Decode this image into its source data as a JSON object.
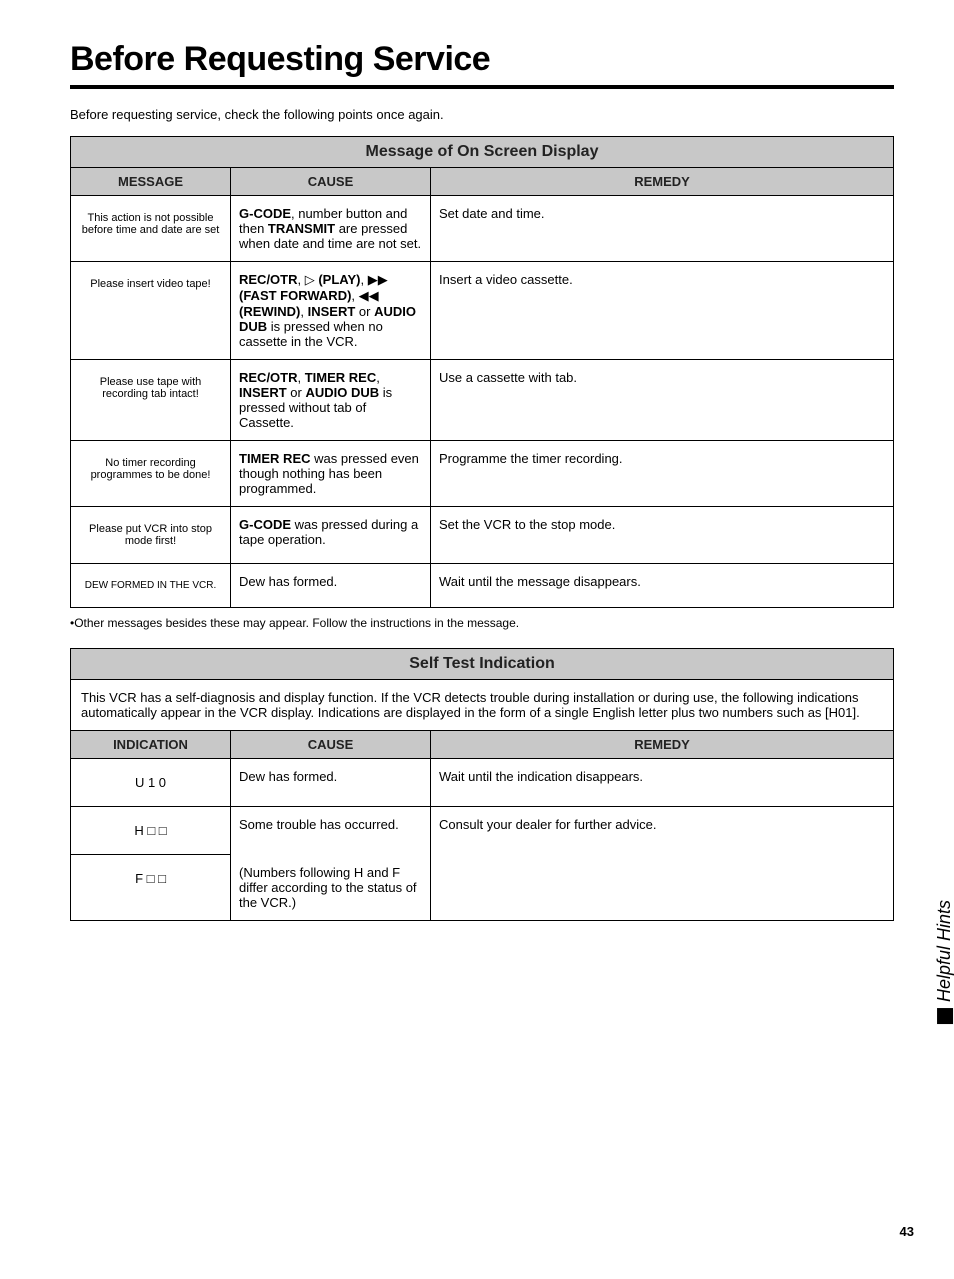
{
  "title": "Before Requesting Service",
  "intro": "Before requesting service, check the following points once again.",
  "table1": {
    "header": "Message of On Screen Display",
    "cols": {
      "c1": "MESSAGE",
      "c2": "CAUSE",
      "c3": "REMEDY"
    },
    "rows": [
      {
        "msg": "This action is not possible before time and date are set",
        "cause_bold1": "G-CODE",
        "cause_txt1": ", number button and then ",
        "cause_bold2": "TRANSMIT",
        "cause_txt2": " are pressed when date and time are not set.",
        "remedy": "Set date and time."
      },
      {
        "msg": "Please insert video tape!",
        "cause_bold1": "REC/OTR",
        "cause_sym1": ", ▷ ",
        "cause_bold2": "(PLAY)",
        "cause_sym2": ", ▶▶ ",
        "cause_bold3": "(FAST FORWARD)",
        "cause_sym3": ", ◀◀ ",
        "cause_bold4": "(REWIND)",
        "cause_txt1": ", ",
        "cause_bold5": "INSERT",
        "cause_txt2": " or ",
        "cause_bold6": "AUDIO DUB",
        "cause_txt3": " is pressed when no cassette in the VCR.",
        "remedy": "Insert a video cassette."
      },
      {
        "msg": "Please use tape with recording tab intact!",
        "cause_bold1": "REC/OTR",
        "cause_txt1": ", ",
        "cause_bold2": "TIMER REC",
        "cause_txt2": ", ",
        "cause_bold3": "INSERT",
        "cause_txt3": " or ",
        "cause_bold4": "AUDIO DUB",
        "cause_txt4": " is pressed without tab of Cassette.",
        "remedy": "Use a cassette with tab."
      },
      {
        "msg": "No timer recording programmes to be done!",
        "cause_bold1": "TIMER REC",
        "cause_txt1": " was pressed even though nothing has been programmed.",
        "remedy": "Programme the timer recording."
      },
      {
        "msg": "Please put VCR into stop mode first!",
        "cause_bold1": "G-CODE",
        "cause_txt1": " was pressed during a tape operation.",
        "remedy": "Set the VCR to the stop mode."
      },
      {
        "msg": "DEW FORMED IN THE VCR.",
        "cause_txt1": "Dew has formed.",
        "remedy": "Wait until the message disappears."
      }
    ]
  },
  "footnote": "•Other messages besides these may appear. Follow the instructions in the message.",
  "table2": {
    "header": "Self Test Indication",
    "desc": "This VCR has a self-diagnosis and display function. If the VCR detects trouble during installation or during use, the following indications automatically appear in the VCR display. Indications are displayed in the form of a single English letter plus two numbers such as [H01].",
    "cols": {
      "c1": "INDICATION",
      "c2": "CAUSE",
      "c3": "REMEDY"
    },
    "rows": {
      "r1_ind": "U 1 0",
      "r1_cause": "Dew has formed.",
      "r1_remedy": "Wait until the indication disappears.",
      "r2_ind": "H □ □",
      "r2_cause": "Some trouble has occurred.",
      "r2_remedy": "Consult your dealer for further advice.",
      "r3_ind": "F □ □",
      "r3_cause": "(Numbers following H and F differ according to the status of the VCR.)"
    }
  },
  "sidetab": "Helpful Hints",
  "pagenum": "43",
  "colors": {
    "header_bg": "#c8c8c8",
    "border": "#000000",
    "text": "#000000",
    "background": "#ffffff"
  }
}
